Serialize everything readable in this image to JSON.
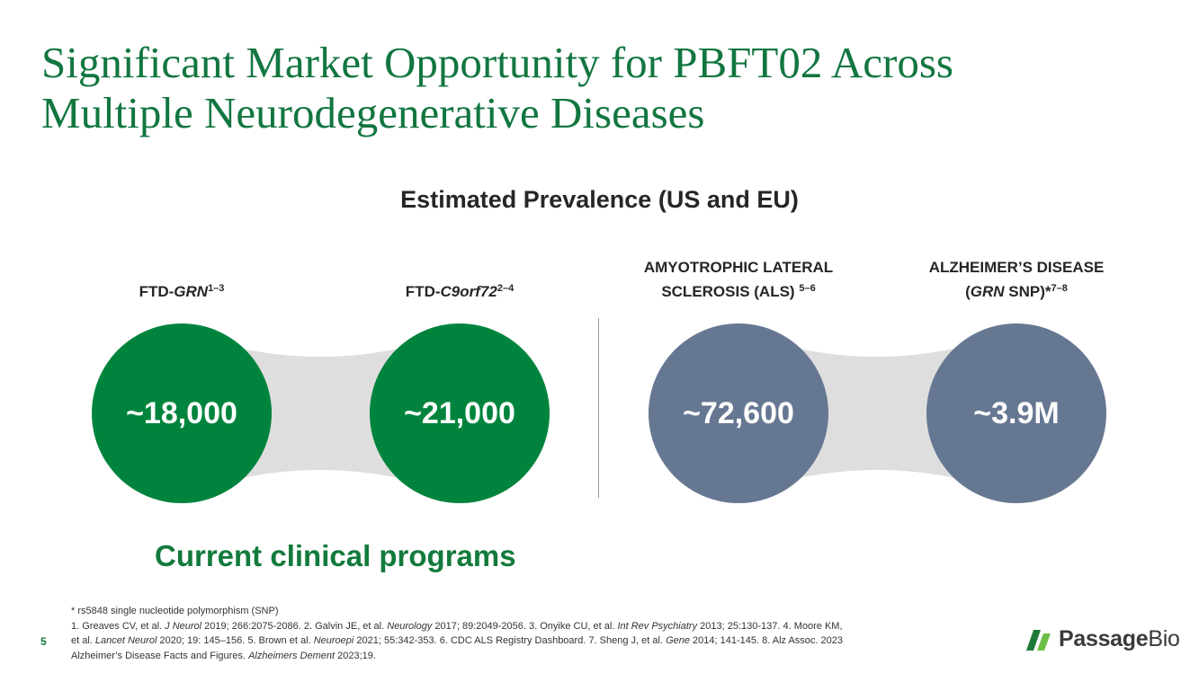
{
  "title": {
    "line1": "Significant Market Opportunity for PBFT02 Across",
    "line2": "Multiple Neurodegenerative Diseases"
  },
  "subtitle": "Estimated Prevalence (US and EU)",
  "groups": [
    {
      "label_prefix": "FTD-",
      "label_gene": "GRN",
      "label_refs": "1–3",
      "value": "~18,000",
      "color": "#00843d"
    },
    {
      "label_prefix": "FTD-",
      "label_gene": "C9orf72",
      "label_refs": "2–4",
      "value": "~21,000",
      "color": "#00843d"
    },
    {
      "label_line1": "AMYOTROPHIC LATERAL",
      "label_line2": "SCLEROSIS (ALS) ",
      "label_refs": "5–6",
      "value": "~72,600",
      "color": "#667792"
    },
    {
      "label_line1": "ALZHEIMER’S DISEASE",
      "label_open": "(",
      "label_gene": "GRN",
      "label_suffix": " SNP)*",
      "label_refs": "7–8",
      "value": "~3.9M",
      "color": "#667792"
    }
  ],
  "programs_label": "Current clinical programs",
  "footnotes": {
    "snp_note": "* rs5848 single nucleotide polymorphism (SNP)",
    "r1": "1. Greaves CV, et al. ",
    "r1_journal": "J Neurol",
    "r1b": " 2019; 266:2075-2086. 2. Galvin JE, et al. ",
    "r2_journal": "Neurology",
    "r2b": " 2017; 89:2049-2056. 3. Onyike CU, et al. ",
    "r3_journal": "Int Rev Psychiatry",
    "r3b": " 2013; 25:130-137. 4. Moore KM,",
    "r4a": "et al. ",
    "r4_journal": "Lancet Neurol",
    "r4b": " 2020; 19: 145–156. 5. Brown et al. ",
    "r5_journal": "Neuroepi",
    "r5b": " 2021; 55:342-353. 6. CDC ALS Registry Dashboard. 7. Sheng J, et al. ",
    "r7_journal": "Gene",
    "r7b": " 2014; 141-145. 8. Alz Assoc. 2023",
    "r8a": "Alzheimer’s Disease Facts and Figures. ",
    "r8_journal": "Alzheimers Dement",
    "r8b": " 2023;19."
  },
  "page_number": "5",
  "logo": {
    "word1": "Passage",
    "word2": "Bio",
    "icon": "passage-bio-logo-mark",
    "dark_green": "#1e7a3a",
    "light_green": "#6cbe45"
  },
  "colors": {
    "title": "#127640",
    "green_circle": "#00843d",
    "slate_circle": "#667792",
    "connector": "#dedede"
  }
}
